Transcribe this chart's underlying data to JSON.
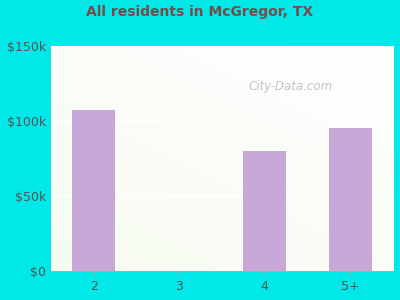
{
  "subtitle": "All residents in McGregor, TX",
  "categories": [
    "2",
    "3",
    "4",
    "5+"
  ],
  "values": [
    107000,
    0,
    80000,
    95000
  ],
  "bar_color": "#c8a8d8",
  "outer_bg": "#00e8e8",
  "title_color": "#2a2a2a",
  "subtitle_color": "#7a4a4a",
  "axis_label_color": "#555555",
  "ytick_labels": [
    "$0",
    "$50k",
    "$100k",
    "$150k"
  ],
  "ytick_values": [
    0,
    50000,
    100000,
    150000
  ],
  "ylim": [
    0,
    150000
  ],
  "watermark": "City-Data.com",
  "title_fontsize": 13,
  "subtitle_fontsize": 10,
  "tick_fontsize": 9
}
